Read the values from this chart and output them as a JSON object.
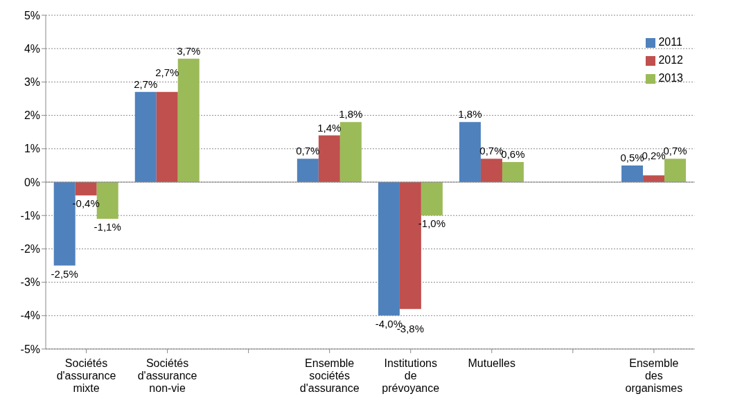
{
  "chart_data": {
    "type": "bar",
    "categories": [
      "Sociétés d'assurance mixte",
      "Sociétés d'assurance non-vie",
      null,
      "Ensemble sociétés d'assurance",
      "Institutions de prévoyance",
      "Mutuelles",
      null,
      "Ensemble des organismes"
    ],
    "series": [
      {
        "name": "2011",
        "color": "#4f81bd",
        "values": [
          -2.5,
          2.7,
          null,
          0.7,
          -4.0,
          1.8,
          null,
          0.5
        ],
        "value_labels": [
          "-2,5%",
          "2,7%",
          null,
          "0,7%",
          "-4,0%",
          "1,8%",
          null,
          "0,5%"
        ]
      },
      {
        "name": "2012",
        "color": "#c0504d",
        "values": [
          -0.4,
          2.7,
          null,
          1.4,
          -3.8,
          0.7,
          null,
          0.2
        ],
        "value_labels": [
          "-0,4%",
          "2,7%",
          null,
          "1,4%",
          "-3,8%",
          "0,7%",
          null,
          "0,2%"
        ]
      },
      {
        "name": "2013",
        "color": "#9bbb59",
        "values": [
          -1.1,
          3.7,
          null,
          1.8,
          -1.0,
          0.6,
          null,
          0.7
        ],
        "value_labels": [
          "-1,1%",
          "3,7%",
          null,
          "1,8%",
          "-1,0%",
          "0,6%",
          null,
          "0,7%"
        ]
      }
    ],
    "ylim": [
      -5,
      5
    ],
    "yticks": [
      {
        "value": -5,
        "label": "-5%"
      },
      {
        "value": -4,
        "label": "-4%"
      },
      {
        "value": -3,
        "label": "-3%"
      },
      {
        "value": -2,
        "label": "-2%"
      },
      {
        "value": -1,
        "label": "-1%"
      },
      {
        "value": 0,
        "label": "0%"
      },
      {
        "value": 1,
        "label": "1%"
      },
      {
        "value": 2,
        "label": "2%"
      },
      {
        "value": 3,
        "label": "3%"
      },
      {
        "value": 4,
        "label": "4%"
      },
      {
        "value": 5,
        "label": "5%"
      }
    ],
    "grid": "y",
    "legend": "top right"
  }
}
